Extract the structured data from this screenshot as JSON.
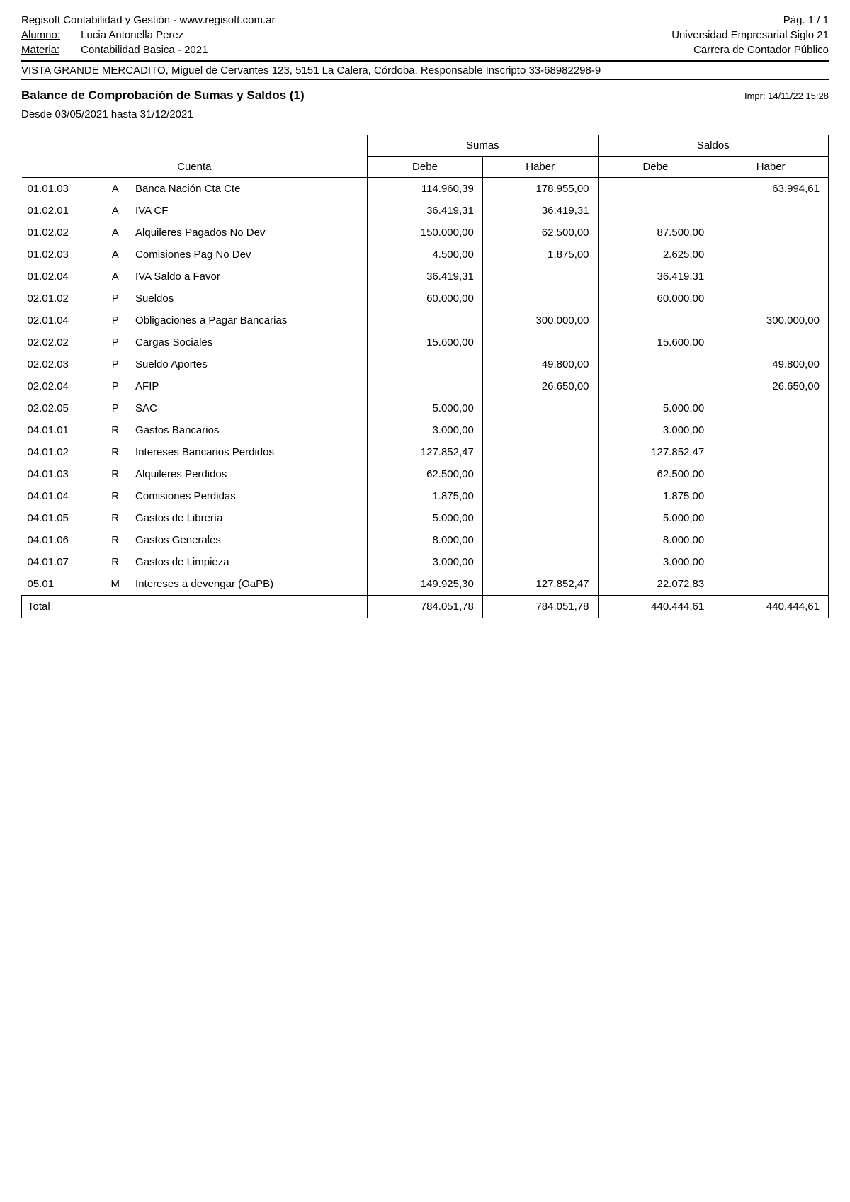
{
  "header": {
    "software": "Regisoft Contabilidad y Gestión   -   www.regisoft.com.ar",
    "page": "Pág. 1 / 1",
    "alumno_label": "Alumno:",
    "alumno_value": "Lucia Antonella Perez",
    "universidad": "Universidad Empresarial Siglo 21",
    "materia_label": "Materia:",
    "materia_value": "Contabilidad Basica - 2021",
    "carrera": "Carrera de Contador Público",
    "company": "VISTA GRANDE MERCADITO, Miguel de Cervantes 123, 5151 La Calera, Córdoba.  Responsable Inscripto 33-68982298-9"
  },
  "report": {
    "title": "Balance de Comprobación de Sumas y Saldos (1)",
    "print_label": "Impr:",
    "print_date": "14/11/22  15:28",
    "date_range": "Desde  03/05/2021  hasta  31/12/2021"
  },
  "columns": {
    "cuenta": "Cuenta",
    "sumas": "Sumas",
    "saldos": "Saldos",
    "debe": "Debe",
    "haber": "Haber"
  },
  "rows": [
    {
      "code": "01.01.03",
      "type": "A",
      "desc": "Banca Nación Cta Cte",
      "s_debe": "114.960,39",
      "s_haber": "178.955,00",
      "sa_debe": "",
      "sa_haber": "63.994,61"
    },
    {
      "code": "01.02.01",
      "type": "A",
      "desc": "IVA CF",
      "s_debe": "36.419,31",
      "s_haber": "36.419,31",
      "sa_debe": "",
      "sa_haber": ""
    },
    {
      "code": "01.02.02",
      "type": "A",
      "desc": "Alquileres Pagados No Dev",
      "s_debe": "150.000,00",
      "s_haber": "62.500,00",
      "sa_debe": "87.500,00",
      "sa_haber": ""
    },
    {
      "code": "01.02.03",
      "type": "A",
      "desc": "Comisiones Pag No Dev",
      "s_debe": "4.500,00",
      "s_haber": "1.875,00",
      "sa_debe": "2.625,00",
      "sa_haber": ""
    },
    {
      "code": "01.02.04",
      "type": "A",
      "desc": "IVA Saldo a Favor",
      "s_debe": "36.419,31",
      "s_haber": "",
      "sa_debe": "36.419,31",
      "sa_haber": ""
    },
    {
      "code": "02.01.02",
      "type": "P",
      "desc": "Sueldos",
      "s_debe": "60.000,00",
      "s_haber": "",
      "sa_debe": "60.000,00",
      "sa_haber": ""
    },
    {
      "code": "02.01.04",
      "type": "P",
      "desc": "Obligaciones a Pagar Bancarias",
      "s_debe": "",
      "s_haber": "300.000,00",
      "sa_debe": "",
      "sa_haber": "300.000,00"
    },
    {
      "code": "02.02.02",
      "type": "P",
      "desc": "Cargas Sociales",
      "s_debe": "15.600,00",
      "s_haber": "",
      "sa_debe": "15.600,00",
      "sa_haber": ""
    },
    {
      "code": "02.02.03",
      "type": "P",
      "desc": "Sueldo Aportes",
      "s_debe": "",
      "s_haber": "49.800,00",
      "sa_debe": "",
      "sa_haber": "49.800,00"
    },
    {
      "code": "02.02.04",
      "type": "P",
      "desc": "AFIP",
      "s_debe": "",
      "s_haber": "26.650,00",
      "sa_debe": "",
      "sa_haber": "26.650,00"
    },
    {
      "code": "02.02.05",
      "type": "P",
      "desc": "SAC",
      "s_debe": "5.000,00",
      "s_haber": "",
      "sa_debe": "5.000,00",
      "sa_haber": ""
    },
    {
      "code": "04.01.01",
      "type": "R",
      "desc": "Gastos Bancarios",
      "s_debe": "3.000,00",
      "s_haber": "",
      "sa_debe": "3.000,00",
      "sa_haber": ""
    },
    {
      "code": "04.01.02",
      "type": "R",
      "desc": "Intereses Bancarios Perdidos",
      "s_debe": "127.852,47",
      "s_haber": "",
      "sa_debe": "127.852,47",
      "sa_haber": ""
    },
    {
      "code": "04.01.03",
      "type": "R",
      "desc": "Alquileres Perdidos",
      "s_debe": "62.500,00",
      "s_haber": "",
      "sa_debe": "62.500,00",
      "sa_haber": ""
    },
    {
      "code": "04.01.04",
      "type": "R",
      "desc": "Comisiones Perdidas",
      "s_debe": "1.875,00",
      "s_haber": "",
      "sa_debe": "1.875,00",
      "sa_haber": ""
    },
    {
      "code": "04.01.05",
      "type": "R",
      "desc": "Gastos de Librería",
      "s_debe": "5.000,00",
      "s_haber": "",
      "sa_debe": "5.000,00",
      "sa_haber": ""
    },
    {
      "code": "04.01.06",
      "type": "R",
      "desc": "Gastos Generales",
      "s_debe": "8.000,00",
      "s_haber": "",
      "sa_debe": "8.000,00",
      "sa_haber": ""
    },
    {
      "code": "04.01.07",
      "type": "R",
      "desc": "Gastos de Limpieza",
      "s_debe": "3.000,00",
      "s_haber": "",
      "sa_debe": "3.000,00",
      "sa_haber": ""
    },
    {
      "code": "05.01",
      "type": "M",
      "desc": "Intereses a devengar (OaPB)",
      "s_debe": "149.925,30",
      "s_haber": "127.852,47",
      "sa_debe": "22.072,83",
      "sa_haber": ""
    }
  ],
  "total": {
    "label": "Total",
    "s_debe": "784.051,78",
    "s_haber": "784.051,78",
    "sa_debe": "440.444,61",
    "sa_haber": "440.444,61"
  }
}
